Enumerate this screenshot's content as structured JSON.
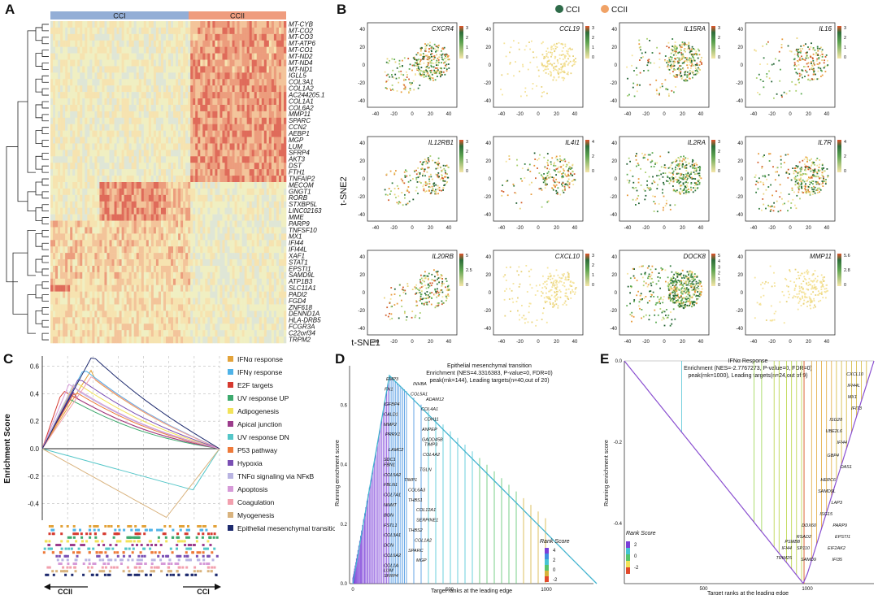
{
  "panels": {
    "a": "A",
    "b": "B",
    "c": "C",
    "d": "D",
    "e": "E"
  },
  "heatmap": {
    "groups": [
      {
        "label": "CCI",
        "color": "#93aed6"
      },
      {
        "label": "CCII",
        "color": "#ef9c7e"
      }
    ],
    "genes": [
      "MT-CYB",
      "MT-CO2",
      "MT-CO3",
      "MT-ATP6",
      "MT-CO1",
      "MT-ND2",
      "MT-ND4",
      "MT-ND1",
      "IGLL5",
      "COL3A1",
      "COL1A2",
      "AC244205.1",
      "COL1A1",
      "COL6A2",
      "MMP11",
      "SPARC",
      "CCN2",
      "AEBP1",
      "MGP",
      "LUM",
      "SFRP4",
      "AKT3",
      "DST",
      "FTH1",
      "TNFAIP2",
      "MECOM",
      "GNGT1",
      "RORB",
      "STXBP5L",
      "LINC02163",
      "MME",
      "PARP9",
      "TNFSF10",
      "MX1",
      "IFI44",
      "IFI44L",
      "XAF1",
      "STAT1",
      "EPSTI1",
      "SAMD9L",
      "ATP1B3",
      "SLC11A1",
      "PADI2",
      "FGD4",
      "ZNF618",
      "DENND1A",
      "HLA-DRB5",
      "FCGR3A",
      "C22orf34",
      "TRPM2"
    ]
  },
  "tsne": {
    "legend": [
      {
        "label": "CCI",
        "color": "#2e6b49"
      },
      {
        "label": "CCII",
        "color": "#f0a266"
      }
    ],
    "x_label": "t-SNE1",
    "y_label": "t-SNE2",
    "x_ticks": [
      "-40",
      "-20",
      "0",
      "20",
      "40"
    ],
    "y_ticks": [
      "40",
      "20",
      "0",
      "-20",
      "-40"
    ],
    "plots": [
      {
        "gene": "CXCR4",
        "scale": [
          "3",
          "2",
          "1",
          "0"
        ]
      },
      {
        "gene": "CCL19",
        "scale": [
          "3",
          "2",
          "1",
          "0"
        ]
      },
      {
        "gene": "IL15RA",
        "scale": [
          "3",
          "2",
          "1",
          "0"
        ]
      },
      {
        "gene": "IL16",
        "scale": [
          "3",
          "2",
          "1",
          "0"
        ]
      },
      {
        "gene": "IL12RB1",
        "scale": [
          "3",
          "2",
          "1",
          "0"
        ]
      },
      {
        "gene": "IL4I1",
        "scale": [
          "4",
          "2",
          "0"
        ]
      },
      {
        "gene": "IL2RA",
        "scale": [
          "3",
          "2",
          "1",
          "0"
        ]
      },
      {
        "gene": "IL7R",
        "scale": [
          "4",
          "2",
          "0"
        ]
      },
      {
        "gene": "IL20RB",
        "scale": [
          "5",
          "2.5",
          "0"
        ]
      },
      {
        "gene": "CXCL10",
        "scale": [
          "3",
          "2",
          "1",
          "0"
        ]
      },
      {
        "gene": "DOCK8",
        "scale": [
          "5",
          "4",
          "3",
          "2",
          "1",
          "0"
        ]
      },
      {
        "gene": "MMP11",
        "scale": [
          "5.6",
          "2.8",
          "0"
        ]
      }
    ]
  },
  "gsea": {
    "ylabel": "Enrichment Score",
    "y_ticks": [
      "0.6",
      "0.4",
      "0.2",
      "0.0",
      "-0.2",
      "-0.4"
    ],
    "left_label": "CCII",
    "right_label": "CCI",
    "sets": [
      {
        "name": "IFNα response",
        "color": "#e3a33a"
      },
      {
        "name": "IFNγ response",
        "color": "#4fb3e8"
      },
      {
        "name": "E2F targets",
        "color": "#d6392f"
      },
      {
        "name": "UV response UP",
        "color": "#3daa6e"
      },
      {
        "name": "Adipogenesis",
        "color": "#f2e35a"
      },
      {
        "name": "Apical junction",
        "color": "#9c3c8c"
      },
      {
        "name": "UV response DN",
        "color": "#54c6c8"
      },
      {
        "name": "P53 pathway",
        "color": "#ee7a3a"
      },
      {
        "name": "Hypoxia",
        "color": "#7a4fb4"
      },
      {
        "name": "TNFα signaling via NFκB",
        "color": "#b9b4e2"
      },
      {
        "name": "Apoptosis",
        "color": "#d69ad8"
      },
      {
        "name": "Coagulation",
        "color": "#f2a0ae"
      },
      {
        "name": "Myogenesis",
        "color": "#d9b37e"
      },
      {
        "name": "Epithelial mesenchymal transition",
        "color": "#1d2a6e"
      }
    ]
  },
  "emt": {
    "title": "Epithelial mesenchymal transition",
    "line1": "Enrichment (NES=4.3316383, P-value=0, FDR=0)",
    "line2": "peak(rnk=144), Leading targets(n=40,out of 20)",
    "ylabel": "Running enrichment score",
    "xlabel": "Target ranks at the leading edge",
    "x_ticks": [
      "0",
      "500",
      "1000"
    ],
    "y_ticks": [
      "0.6",
      "0.4",
      "0.2",
      "0.0"
    ],
    "rank_title": "Rank Score",
    "rank_ticks": [
      "4",
      "2",
      "0",
      "-2"
    ],
    "genes": [
      "EMP3",
      "INHBA",
      "FN1",
      "COL5A1",
      "ADAM12",
      "IGFBP4",
      "COL4A1",
      "CALD1",
      "CDH11",
      "MMP2",
      "ANPEP",
      "PRRX1",
      "GADD45B",
      "TIMP3",
      "LAMC2",
      "COL4A2",
      "SDC1",
      "FBN1",
      "TGLN",
      "COL5A2",
      "TIMP1",
      "FBLN1",
      "COL6A3",
      "COL7A1",
      "THBS1",
      "NNMT",
      "COL12A1",
      "BGN",
      "SERPINE1",
      "FSTL1",
      "THBS2",
      "COL3A1",
      "COL1A2",
      "DCN",
      "SPARC",
      "COL6A2",
      "MGP",
      "COL1A",
      "LUM",
      "SFRP4"
    ]
  },
  "ifn": {
    "title": "IFNα Response",
    "line1": "Enrichment (NES=-2.7767273, P-value=0, FDR=0)",
    "line2": "peak(rnk=1000), Leading targets(n=24,out of 9)",
    "ylabel": "Running enrichment score",
    "xlabel": "Target ranks at the leading edge",
    "x_ticks": [
      "500",
      "1000"
    ],
    "y_ticks": [
      "0.0",
      "-0.2",
      "-0.4"
    ],
    "rank_title": "Rank Score",
    "rank_ticks": [
      "2",
      "0",
      "-2"
    ],
    "genes": [
      "CXCL10",
      "IFI44L",
      "MX1",
      "IFIT3",
      "ISG20",
      "UBE2L6",
      "IFI44",
      "GBP4",
      "OAS1",
      "HERC6",
      "SAMD9L",
      "LAP3",
      "ISG15",
      "DDX60",
      "PARP9",
      "RSAD2",
      "EPSTI1",
      "IFI44",
      "PSMB8",
      "EIF2AK2",
      "SP110",
      "TRIM25",
      "SAMD9",
      "IFI35"
    ]
  }
}
